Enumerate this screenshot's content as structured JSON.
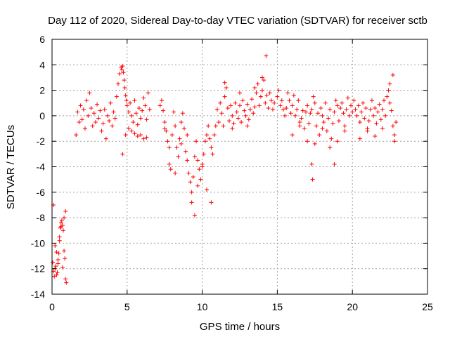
{
  "chart_data": {
    "type": "scatter",
    "title": "Day 112 of 2020, Sidereal Day-to-day VTEC variation (SDTVAR) for receiver sctb",
    "xlabel": "GPS time / hours",
    "ylabel": "SDTVAR / TECUs",
    "xlim": [
      0,
      25
    ],
    "ylim": [
      -14,
      6
    ],
    "xticks": [
      0,
      5,
      10,
      15,
      20,
      25
    ],
    "yticks": [
      -14,
      -12,
      -10,
      -8,
      -6,
      -4,
      -2,
      0,
      2,
      4,
      6
    ],
    "xtick_labels": [
      "0",
      "5",
      "10",
      "15",
      "20",
      "25"
    ],
    "ytick_labels": [
      "-14",
      "-12",
      "-10",
      "-8",
      "-6",
      "-4",
      "-2",
      "0",
      "2",
      "4",
      "6"
    ],
    "grid": true,
    "marker": "plus",
    "color": "#ff0000",
    "series": [
      {
        "name": "SDTVAR",
        "x": [
          0.05,
          0.1,
          0.15,
          0.2,
          0.25,
          0.3,
          0.35,
          0.4,
          0.45,
          0.5,
          0.55,
          0.6,
          0.65,
          0.7,
          0.75,
          0.8,
          0.85,
          0.9,
          0.95,
          0.1,
          0.2,
          0.3,
          0.4,
          0.5,
          0.6,
          0.7,
          0.8,
          0.9,
          1.6,
          1.7,
          1.8,
          1.9,
          2.0,
          2.1,
          2.2,
          2.3,
          2.4,
          2.5,
          2.6,
          2.7,
          2.8,
          2.9,
          3.0,
          3.1,
          3.2,
          3.3,
          3.4,
          3.5,
          3.6,
          3.7,
          3.8,
          3.9,
          4.0,
          4.1,
          4.2,
          4.3,
          4.4,
          4.5,
          4.6,
          4.65,
          4.7,
          4.75,
          4.8,
          4.85,
          4.9,
          4.95,
          5.0,
          5.1,
          5.2,
          5.3,
          5.4,
          5.5,
          5.6,
          5.7,
          5.8,
          5.9,
          6.0,
          6.1,
          6.2,
          6.3,
          6.4,
          6.5,
          4.7,
          4.9,
          5.1,
          5.3,
          5.5,
          5.7,
          5.9,
          6.1,
          6.3,
          7.2,
          7.3,
          7.4,
          7.5,
          7.6,
          7.7,
          7.8,
          7.9,
          8.0,
          8.1,
          8.2,
          8.3,
          8.4,
          8.5,
          8.6,
          8.7,
          8.8,
          8.9,
          9.0,
          9.1,
          9.2,
          9.3,
          9.4,
          9.5,
          9.6,
          9.7,
          9.8,
          9.9,
          10.0,
          10.1,
          10.2,
          10.3,
          10.4,
          10.5,
          10.6,
          10.7,
          10.8,
          10.9,
          7.5,
          7.8,
          8.2,
          8.6,
          9.0,
          9.3,
          9.5,
          9.7,
          10.0,
          10.3,
          10.6,
          11.0,
          11.1,
          11.2,
          11.3,
          11.4,
          11.5,
          11.6,
          11.7,
          11.8,
          11.9,
          12.0,
          12.1,
          12.2,
          12.3,
          12.4,
          12.5,
          12.6,
          12.7,
          12.8,
          12.9,
          13.0,
          13.1,
          13.2,
          13.3,
          13.4,
          13.5,
          13.6,
          13.7,
          13.8,
          13.9,
          14.0,
          14.1,
          14.2,
          14.3,
          14.4,
          14.5,
          14.6,
          14.7,
          14.8,
          11.5,
          12.0,
          12.5,
          13.0,
          13.5,
          14.0,
          14.25,
          15.0,
          15.1,
          15.2,
          15.3,
          15.4,
          15.5,
          15.6,
          15.7,
          15.8,
          15.9,
          16.0,
          16.1,
          16.2,
          16.3,
          16.4,
          16.5,
          16.6,
          16.7,
          16.8,
          16.9,
          17.0,
          17.1,
          17.2,
          17.3,
          17.4,
          17.5,
          17.6,
          17.7,
          17.8,
          17.9,
          18.0,
          18.1,
          18.2,
          18.3,
          18.4,
          18.5,
          18.6,
          18.7,
          18.8,
          18.9,
          19.0,
          19.1,
          19.2,
          19.3,
          19.4,
          19.5,
          19.6,
          19.7,
          19.8,
          19.9,
          20.0,
          16.0,
          16.5,
          17.0,
          17.3,
          17.35,
          17.5,
          18.0,
          18.5,
          18.8,
          19.0,
          19.5,
          20.1,
          20.2,
          20.3,
          20.4,
          20.5,
          20.6,
          20.7,
          20.8,
          20.9,
          21.0,
          21.1,
          21.2,
          21.3,
          21.4,
          21.5,
          21.6,
          21.7,
          21.8,
          21.9,
          22.0,
          22.1,
          22.2,
          22.3,
          22.4,
          22.5,
          22.6,
          22.7,
          22.8,
          22.9,
          20.5,
          21.0,
          21.5,
          22.0,
          22.5,
          22.7,
          22.8
        ],
        "y": [
          -11.5,
          -12.2,
          -12.6,
          -12.0,
          -11.8,
          -12.5,
          -12.3,
          -11.6,
          -10.8,
          -9.5,
          -8.8,
          -8.4,
          -8.2,
          -8.6,
          -9.0,
          -10.6,
          -11.2,
          -12.8,
          -13.1,
          -7.0,
          -10.2,
          -10.7,
          -11.3,
          -9.8,
          -8.7,
          -11.9,
          -8.0,
          -7.5,
          -1.5,
          0.3,
          -0.5,
          0.8,
          -0.3,
          0.5,
          -1.0,
          1.2,
          0.0,
          1.8,
          0.6,
          -0.8,
          0.2,
          -0.5,
          0.9,
          -0.2,
          0.4,
          -1.2,
          -0.6,
          0.5,
          -1.8,
          0.0,
          -0.4,
          1.0,
          -0.8,
          0.3,
          -0.2,
          1.5,
          2.5,
          3.3,
          3.8,
          3.6,
          3.9,
          3.4,
          2.8,
          2.2,
          1.6,
          1.2,
          0.8,
          0.3,
          1.0,
          0.0,
          -0.5,
          1.2,
          0.2,
          -0.7,
          0.6,
          -0.2,
          0.4,
          1.4,
          0.8,
          -0.3,
          1.8,
          0.5,
          -3.0,
          -1.5,
          -1.0,
          -1.2,
          -1.4,
          -1.6,
          -1.5,
          -1.8,
          -1.7,
          0.8,
          1.2,
          0.4,
          -0.5,
          -1.2,
          -2.0,
          -3.8,
          -4.2,
          -1.5,
          0.3,
          -0.8,
          -2.5,
          -3.2,
          -1.8,
          -0.5,
          0.2,
          -1.0,
          -2.8,
          -3.5,
          -4.5,
          -5.2,
          -6.0,
          -4.8,
          -3.2,
          -2.0,
          -3.5,
          -4.2,
          -5.0,
          -4.0,
          -3.0,
          -2.0,
          -1.5,
          -0.8,
          -1.8,
          -2.5,
          -3.0,
          -1.5,
          -0.8,
          -1.0,
          -2.5,
          -4.5,
          -2.2,
          -1.5,
          -6.8,
          -7.8,
          -5.5,
          -3.8,
          -5.8,
          -6.8,
          0.5,
          -0.5,
          1.0,
          0.2,
          -0.8,
          1.5,
          2.2,
          0.6,
          -0.4,
          0.8,
          0.0,
          -0.6,
          1.0,
          0.3,
          -0.2,
          0.8,
          -0.5,
          1.2,
          0.4,
          0.0,
          0.9,
          -0.3,
          0.5,
          1.3,
          0.2,
          0.7,
          1.8,
          2.5,
          0.8,
          1.5,
          2.0,
          2.8,
          1.0,
          1.6,
          0.6,
          1.8,
          1.2,
          0.5,
          1.0,
          2.6,
          -1.0,
          1.8,
          -0.8,
          2.2,
          3.0,
          4.7,
          1.5,
          2.0,
          0.8,
          1.2,
          0.5,
          0.0,
          0.6,
          1.8,
          1.2,
          0.2,
          0.8,
          1.6,
          0.0,
          0.5,
          1.2,
          -0.5,
          -0.2,
          0.4,
          -1.0,
          0.3,
          0.8,
          -0.6,
          0.2,
          0.5,
          1.5,
          1.0,
          -0.8,
          0.2,
          -1.5,
          0.6,
          0.0,
          -0.5,
          1.0,
          -1.2,
          -0.2,
          0.5,
          -1.8,
          -0.6,
          0.3,
          1.2,
          0.8,
          -0.4,
          0.6,
          1.0,
          0.2,
          -0.8,
          0.5,
          1.4,
          0.0,
          0.8,
          0.3,
          -1.5,
          -0.8,
          -2.0,
          -3.8,
          -5.0,
          -2.2,
          -1.0,
          -2.5,
          -3.8,
          -2.0,
          -1.2,
          1.2,
          0.5,
          0.0,
          0.8,
          -0.5,
          0.3,
          1.0,
          -0.2,
          0.6,
          -1.0,
          -0.4,
          0.5,
          1.2,
          0.0,
          0.6,
          -0.6,
          0.3,
          0.9,
          -0.3,
          0.5,
          1.2,
          0.0,
          1.5,
          2.0,
          1.0,
          0.4,
          -0.8,
          -1.5,
          -0.5,
          -1.8,
          -1.2,
          -1.6,
          -1.0,
          2.5,
          3.2,
          -2.0
        ]
      }
    ]
  }
}
